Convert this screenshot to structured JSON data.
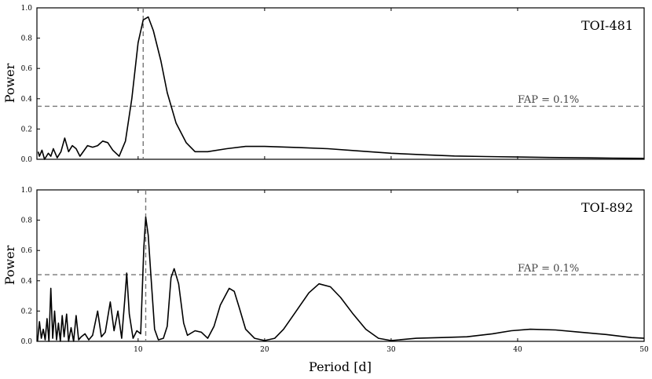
{
  "chart_data": [
    {
      "type": "line",
      "title": "TOI-481",
      "ylabel": "Power",
      "xlabel": "",
      "xlim": [
        2,
        50
      ],
      "ylim": [
        0,
        1.0
      ],
      "yticks": [
        0,
        0.2,
        0.4,
        0.6,
        0.8,
        1.0
      ],
      "ytick_labels": [
        "0.0",
        "0.2",
        "0.4",
        "0.6",
        "0.8",
        "1.0"
      ],
      "xticks": [
        10,
        20,
        30,
        40
      ],
      "grid": false,
      "peak_period": 10.4,
      "fap": {
        "label": "FAP = 0.1%",
        "value": 0.35
      },
      "series": [
        {
          "color": "#000000",
          "points": [
            [
              2.1,
              0.05
            ],
            [
              2.2,
              0.02
            ],
            [
              2.4,
              0.06
            ],
            [
              2.6,
              0.0
            ],
            [
              2.9,
              0.04
            ],
            [
              3.1,
              0.02
            ],
            [
              3.3,
              0.07
            ],
            [
              3.6,
              0.01
            ],
            [
              3.9,
              0.05
            ],
            [
              4.2,
              0.14
            ],
            [
              4.5,
              0.05
            ],
            [
              4.8,
              0.09
            ],
            [
              5.1,
              0.07
            ],
            [
              5.4,
              0.02
            ],
            [
              6.0,
              0.09
            ],
            [
              6.4,
              0.08
            ],
            [
              6.8,
              0.09
            ],
            [
              7.2,
              0.12
            ],
            [
              7.6,
              0.11
            ],
            [
              8.0,
              0.06
            ],
            [
              8.5,
              0.02
            ],
            [
              9.0,
              0.12
            ],
            [
              9.5,
              0.4
            ],
            [
              10.0,
              0.77
            ],
            [
              10.4,
              0.92
            ],
            [
              10.8,
              0.94
            ],
            [
              11.2,
              0.85
            ],
            [
              11.8,
              0.65
            ],
            [
              12.3,
              0.44
            ],
            [
              13.0,
              0.24
            ],
            [
              13.8,
              0.11
            ],
            [
              14.5,
              0.05
            ],
            [
              15.5,
              0.05
            ],
            [
              17.0,
              0.07
            ],
            [
              18.5,
              0.085
            ],
            [
              20.0,
              0.085
            ],
            [
              22.5,
              0.078
            ],
            [
              25.0,
              0.07
            ],
            [
              27.5,
              0.055
            ],
            [
              30.0,
              0.04
            ],
            [
              32.5,
              0.03
            ],
            [
              35.0,
              0.022
            ],
            [
              37.5,
              0.018
            ],
            [
              40.0,
              0.015
            ],
            [
              42.5,
              0.012
            ],
            [
              45.0,
              0.01
            ],
            [
              47.5,
              0.008
            ],
            [
              50.0,
              0.006
            ]
          ]
        }
      ]
    },
    {
      "type": "line",
      "title": "TOI-892",
      "ylabel": "Power",
      "xlabel": "Period [d]",
      "xlim": [
        2,
        50
      ],
      "ylim": [
        0,
        1.0
      ],
      "yticks": [
        0,
        0.2,
        0.4,
        0.6,
        0.8,
        1.0
      ],
      "ytick_labels": [
        "0.0",
        "0.2",
        "0.4",
        "0.6",
        "0.8",
        "1.0"
      ],
      "xticks": [
        10,
        20,
        30,
        40,
        50
      ],
      "xtick_labels": [
        "10",
        "20",
        "30",
        "40",
        "50"
      ],
      "grid": false,
      "peak_period": 10.6,
      "fap": {
        "label": "FAP = 0.1%",
        "value": 0.44
      },
      "series": [
        {
          "color": "#000000",
          "points": [
            [
              2.05,
              0.0
            ],
            [
              2.2,
              0.13
            ],
            [
              2.35,
              0.02
            ],
            [
              2.5,
              0.08
            ],
            [
              2.65,
              0.01
            ],
            [
              2.8,
              0.15
            ],
            [
              2.95,
              0.0
            ],
            [
              3.1,
              0.35
            ],
            [
              3.25,
              0.02
            ],
            [
              3.4,
              0.2
            ],
            [
              3.55,
              0.01
            ],
            [
              3.7,
              0.12
            ],
            [
              3.85,
              0.0
            ],
            [
              4.0,
              0.17
            ],
            [
              4.15,
              0.03
            ],
            [
              4.35,
              0.18
            ],
            [
              4.5,
              0.0
            ],
            [
              4.7,
              0.09
            ],
            [
              4.9,
              0.0
            ],
            [
              5.1,
              0.17
            ],
            [
              5.3,
              0.01
            ],
            [
              5.5,
              0.03
            ],
            [
              5.8,
              0.05
            ],
            [
              6.1,
              0.01
            ],
            [
              6.4,
              0.04
            ],
            [
              6.8,
              0.2
            ],
            [
              7.1,
              0.03
            ],
            [
              7.4,
              0.06
            ],
            [
              7.8,
              0.26
            ],
            [
              8.1,
              0.07
            ],
            [
              8.4,
              0.2
            ],
            [
              8.7,
              0.02
            ],
            [
              8.95,
              0.28
            ],
            [
              9.1,
              0.45
            ],
            [
              9.3,
              0.18
            ],
            [
              9.6,
              0.02
            ],
            [
              9.9,
              0.07
            ],
            [
              10.2,
              0.05
            ],
            [
              10.45,
              0.62
            ],
            [
              10.6,
              0.82
            ],
            [
              10.8,
              0.7
            ],
            [
              11.0,
              0.45
            ],
            [
              11.3,
              0.08
            ],
            [
              11.6,
              0.01
            ],
            [
              12.0,
              0.02
            ],
            [
              12.3,
              0.1
            ],
            [
              12.6,
              0.42
            ],
            [
              12.85,
              0.48
            ],
            [
              13.2,
              0.38
            ],
            [
              13.6,
              0.12
            ],
            [
              13.9,
              0.04
            ],
            [
              14.5,
              0.07
            ],
            [
              15.0,
              0.06
            ],
            [
              15.5,
              0.02
            ],
            [
              16.0,
              0.1
            ],
            [
              16.5,
              0.24
            ],
            [
              17.2,
              0.35
            ],
            [
              17.6,
              0.33
            ],
            [
              18.0,
              0.22
            ],
            [
              18.5,
              0.08
            ],
            [
              19.2,
              0.02
            ],
            [
              20.0,
              0.005
            ],
            [
              20.8,
              0.02
            ],
            [
              21.5,
              0.08
            ],
            [
              22.5,
              0.2
            ],
            [
              23.5,
              0.32
            ],
            [
              24.3,
              0.38
            ],
            [
              25.2,
              0.36
            ],
            [
              26.0,
              0.29
            ],
            [
              27.0,
              0.18
            ],
            [
              28.0,
              0.08
            ],
            [
              29.0,
              0.02
            ],
            [
              30.0,
              0.005
            ],
            [
              32.0,
              0.02
            ],
            [
              34.0,
              0.025
            ],
            [
              36.0,
              0.03
            ],
            [
              38.0,
              0.05
            ],
            [
              39.5,
              0.07
            ],
            [
              41.0,
              0.08
            ],
            [
              43.0,
              0.075
            ],
            [
              45.0,
              0.06
            ],
            [
              47.0,
              0.045
            ],
            [
              49.0,
              0.025
            ],
            [
              50.0,
              0.02
            ]
          ]
        }
      ]
    }
  ]
}
